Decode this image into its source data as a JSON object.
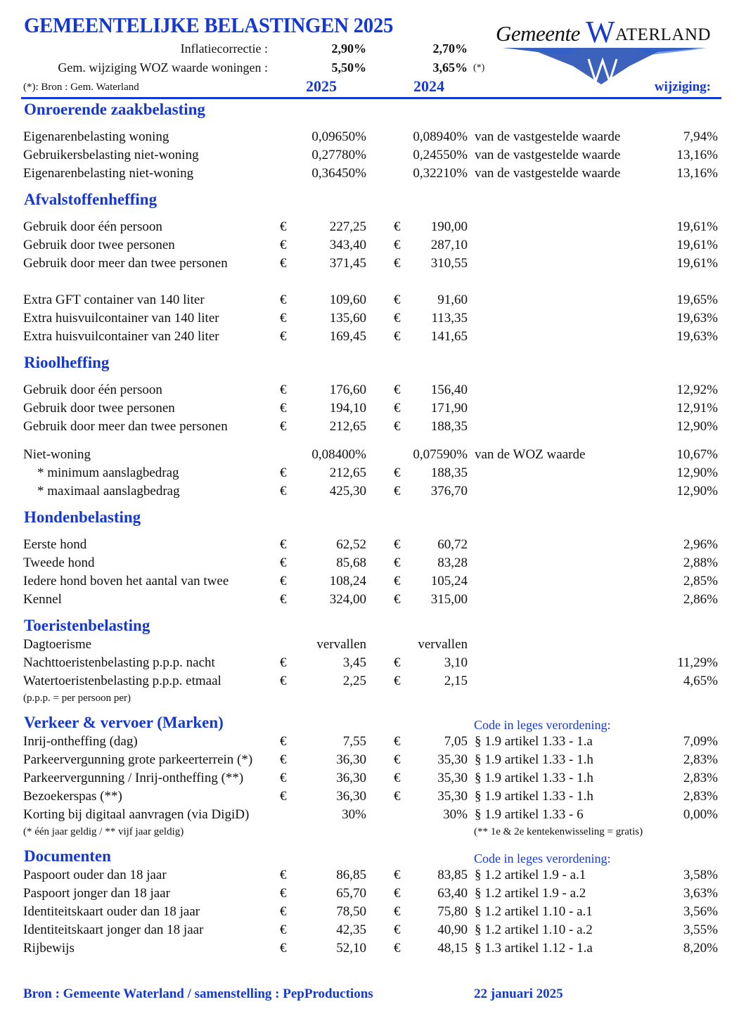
{
  "header": {
    "title": "GEMEENTELIJKE BELASTINGEN 2025",
    "inflation_label": "Inflatiecorrectie :",
    "inflation_2025": "2,90%",
    "inflation_2024": "2,70%",
    "woz_label": "Gem. wijziging WOZ waarde woningen :",
    "woz_2025": "5,50%",
    "woz_2024": "3,65%",
    "woz_note": "(*)",
    "source_note": "(*): Bron : Gem. Waterland",
    "col_2025": "2025",
    "col_2024": "2024",
    "col_change": "wijziging:"
  },
  "logo": {
    "text_gemeente": "Gemeente",
    "text_w": "W",
    "text_aterland": "ATERLAND"
  },
  "colors": {
    "accent": "#1538d0",
    "text": "#111111"
  },
  "sections": [
    {
      "title": "Onroerende zaakbelasting",
      "groups": [
        {
          "rows": [
            [
              "Eigenarenbelasting woning",
              "",
              "0,09650%",
              "",
              "0,08940%",
              "van de vastgestelde waarde",
              "7,94%"
            ],
            [
              "Gebruikersbelasting niet-woning",
              "",
              "0,27780%",
              "",
              "0,24550%",
              "van de vastgestelde waarde",
              "13,16%"
            ],
            [
              "Eigenarenbelasting niet-woning",
              "",
              "0,36450%",
              "",
              "0,32210%",
              "van de vastgestelde waarde",
              "13,16%"
            ]
          ]
        }
      ]
    },
    {
      "title": "Afvalstoffenheffing",
      "groups": [
        {
          "rows": [
            [
              "Gebruik door één persoon",
              "€",
              "227,25",
              "€",
              "190,00",
              "",
              "19,61%"
            ],
            [
              "Gebruik door twee personen",
              "€",
              "343,40",
              "€",
              "287,10",
              "",
              "19,61%"
            ],
            [
              "Gebruik door meer dan twee personen",
              "€",
              "371,45",
              "€",
              "310,55",
              "",
              "19,61%"
            ]
          ]
        },
        {
          "rows": [
            [
              "Extra GFT container van 140 liter",
              "€",
              "109,60",
              "€",
              "91,60",
              "",
              "19,65%"
            ],
            [
              "Extra huisvuilcontainer van 140 liter",
              "€",
              "135,60",
              "€",
              "113,35",
              "",
              "19,63%"
            ],
            [
              "Extra huisvuilcontainer van 240 liter",
              "€",
              "169,45",
              "€",
              "141,65",
              "",
              "19,63%"
            ]
          ]
        }
      ]
    },
    {
      "title": "Rioolheffing",
      "groups": [
        {
          "rows": [
            [
              "Gebruik door één persoon",
              "€",
              "176,60",
              "€",
              "156,40",
              "",
              "12,92%"
            ],
            [
              "Gebruik door twee personen",
              "€",
              "194,10",
              "€",
              "171,90",
              "",
              "12,91%"
            ],
            [
              "Gebruik door meer dan twee personen",
              "€",
              "212,65",
              "€",
              "188,35",
              "",
              "12,90%"
            ]
          ]
        },
        {
          "rows": [
            [
              "Niet-woning",
              "",
              "0,08400%",
              "",
              "0,07590%",
              "van de WOZ waarde",
              "10,67%"
            ],
            [
              "* minimum aanslagbedrag",
              "€",
              "212,65",
              "€",
              "188,35",
              "",
              "12,90%"
            ],
            [
              "* maximaal aanslagbedrag",
              "€",
              "425,30",
              "€",
              "376,70",
              "",
              "12,90%"
            ]
          ]
        }
      ]
    },
    {
      "title": "Hondenbelasting",
      "groups": [
        {
          "rows": [
            [
              "Eerste hond",
              "€",
              "62,52",
              "€",
              "60,72",
              "",
              "2,96%"
            ],
            [
              "Tweede hond",
              "€",
              "85,68",
              "€",
              "83,28",
              "",
              "2,88%"
            ],
            [
              "Iedere hond boven het aantal van twee",
              "€",
              "108,24",
              "€",
              "105,24",
              "",
              "2,85%"
            ],
            [
              "Kennel",
              "€",
              "324,00",
              "€",
              "315,00",
              "",
              "2,86%"
            ]
          ]
        }
      ]
    },
    {
      "title": "Toeristenbelasting",
      "tight": true,
      "groups": [
        {
          "rows": [
            [
              "Dagtoerisme",
              "",
              "vervallen",
              "",
              "vervallen",
              "",
              ""
            ],
            [
              "Nachttoeristenbelasting p.p.p. nacht",
              "€",
              "3,45",
              "€",
              "3,10",
              "",
              "11,29%"
            ],
            [
              "Watertoeristenbelasting p.p.p. etmaal",
              "€",
              "2,25",
              "€",
              "2,15",
              "",
              "4,65%"
            ]
          ],
          "footnote_left": "(p.p.p. = per persoon per)"
        }
      ]
    },
    {
      "title": "Verkeer & vervoer (Marken)",
      "code_header": "Code in leges verordening:",
      "tight": true,
      "groups": [
        {
          "rows": [
            [
              "Inrij-ontheffing (dag)",
              "€",
              "7,55",
              "€",
              "7,05",
              "§ 1.9 artikel 1.33 - 1.a",
              "7,09%"
            ],
            [
              "Parkeervergunning grote parkeerterrein (*)",
              "€",
              "36,30",
              "€",
              "35,30",
              "§ 1.9 artikel 1.33 - 1.h",
              "2,83%"
            ],
            [
              "Parkeervergunning / Inrij-ontheffing (**)",
              "€",
              "36,30",
              "€",
              "35,30",
              "§ 1.9 artikel 1.33 - 1.h",
              "2,83%"
            ],
            [
              "Bezoekerspas (**)",
              "€",
              "36,30",
              "€",
              "35,30",
              "§ 1.9 artikel 1.33 - 1.h",
              "2,83%"
            ],
            [
              "Korting bij digitaal aanvragen (via DigiD)",
              "",
              "30%",
              "",
              "30%",
              "§ 1.9 artikel 1.33 - 6",
              "0,00%"
            ]
          ],
          "footnote_left": "(* één jaar geldig /  ** vijf jaar geldig)",
          "footnote_right": "(** 1e & 2e kentekenwisseling = gratis)"
        }
      ]
    },
    {
      "title": "Documenten",
      "code_header": "Code in leges verordening:",
      "tight": true,
      "groups": [
        {
          "rows": [
            [
              "Paspoort ouder dan 18 jaar",
              "€",
              "86,85",
              "€",
              "83,85",
              "§ 1.2 artikel 1.9 - a.1",
              "3,58%"
            ],
            [
              "Paspoort jonger dan 18 jaar",
              "€",
              "65,70",
              "€",
              "63,40",
              "§ 1.2 artikel 1.9 - a.2",
              "3,63%"
            ],
            [
              "Identiteitskaart ouder dan 18 jaar",
              "€",
              "78,50",
              "€",
              "75,80",
              "§ 1.2 artikel 1.10 - a.1",
              "3,56%"
            ],
            [
              "Identiteitskaart jonger dan 18 jaar",
              "€",
              "42,35",
              "€",
              "40,90",
              "§ 1.2 artikel 1.10 - a.2",
              "3,55%"
            ],
            [
              "Rijbewijs",
              "€",
              "52,10",
              "€",
              "48,15",
              "§ 1.3 artikel 1.12 - 1.a",
              "8,20%"
            ]
          ]
        }
      ]
    }
  ],
  "footer": {
    "source": "Bron : Gemeente Waterland / samenstelling : PepProductions",
    "date": "22 januari 2025"
  }
}
